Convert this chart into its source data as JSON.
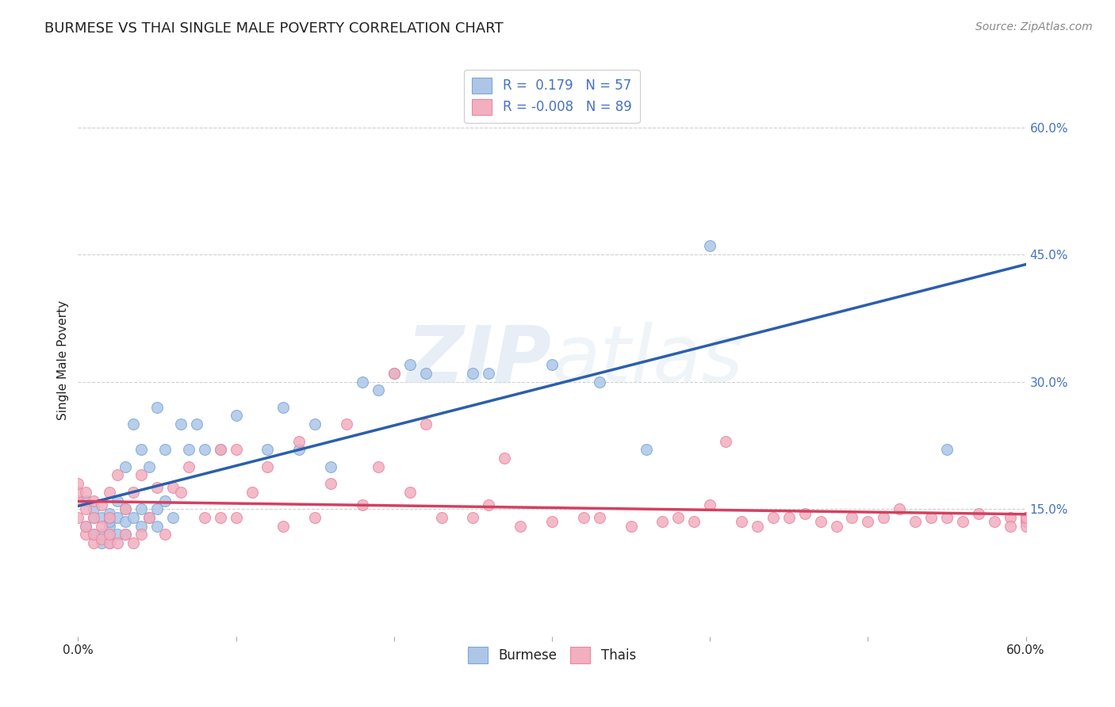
{
  "title": "BURMESE VS THAI SINGLE MALE POVERTY CORRELATION CHART",
  "source": "Source: ZipAtlas.com",
  "ylabel": "Single Male Poverty",
  "x_min": 0.0,
  "x_max": 0.6,
  "y_min": 0.0,
  "y_max": 0.65,
  "x_ticks": [
    0.0,
    0.1,
    0.2,
    0.3,
    0.4,
    0.5,
    0.6
  ],
  "x_tick_labels": [
    "0.0%",
    "",
    "",
    "",
    "",
    "",
    "60.0%"
  ],
  "y_ticks_right": [
    0.15,
    0.3,
    0.45,
    0.6
  ],
  "y_tick_labels_right": [
    "15.0%",
    "30.0%",
    "45.0%",
    "60.0%"
  ],
  "grid_color": "#d0d0d0",
  "background_color": "#ffffff",
  "burmese_color": "#adc6e8",
  "thais_color": "#f2afc0",
  "burmese_edge_color": "#7ba8d4",
  "thais_edge_color": "#e888a0",
  "burmese_line_color": "#2b5fac",
  "thais_line_color": "#d44060",
  "burmese_R": 0.179,
  "burmese_N": 57,
  "thais_R": -0.008,
  "thais_N": 89,
  "title_color": "#222222",
  "ylabel_color": "#222222",
  "tick_label_color_bottom": "#222222",
  "tick_label_color_right": "#4472c4",
  "legend_text_color": "#4472c4",
  "watermark_color": "#d8e4f0",
  "watermark_text": "ZIPatlas",
  "burmese_x": [
    0.005,
    0.005,
    0.01,
    0.01,
    0.01,
    0.015,
    0.015,
    0.015,
    0.02,
    0.02,
    0.02,
    0.02,
    0.02,
    0.02,
    0.025,
    0.025,
    0.025,
    0.03,
    0.03,
    0.03,
    0.03,
    0.035,
    0.035,
    0.04,
    0.04,
    0.04,
    0.045,
    0.045,
    0.05,
    0.05,
    0.05,
    0.055,
    0.055,
    0.06,
    0.065,
    0.07,
    0.075,
    0.08,
    0.09,
    0.1,
    0.12,
    0.13,
    0.14,
    0.15,
    0.16,
    0.18,
    0.19,
    0.2,
    0.21,
    0.22,
    0.25,
    0.26,
    0.3,
    0.33,
    0.36,
    0.4,
    0.55
  ],
  "burmese_y": [
    0.13,
    0.16,
    0.12,
    0.14,
    0.15,
    0.11,
    0.12,
    0.14,
    0.11,
    0.12,
    0.13,
    0.135,
    0.14,
    0.145,
    0.12,
    0.14,
    0.16,
    0.12,
    0.135,
    0.15,
    0.2,
    0.14,
    0.25,
    0.13,
    0.15,
    0.22,
    0.14,
    0.2,
    0.13,
    0.15,
    0.27,
    0.16,
    0.22,
    0.14,
    0.25,
    0.22,
    0.25,
    0.22,
    0.22,
    0.26,
    0.22,
    0.27,
    0.22,
    0.25,
    0.2,
    0.3,
    0.29,
    0.31,
    0.32,
    0.31,
    0.31,
    0.31,
    0.32,
    0.3,
    0.22,
    0.46,
    0.22
  ],
  "thais_x": [
    0.0,
    0.0,
    0.0,
    0.0,
    0.005,
    0.005,
    0.005,
    0.005,
    0.01,
    0.01,
    0.01,
    0.01,
    0.015,
    0.015,
    0.015,
    0.02,
    0.02,
    0.02,
    0.02,
    0.025,
    0.025,
    0.03,
    0.03,
    0.035,
    0.035,
    0.04,
    0.04,
    0.045,
    0.05,
    0.055,
    0.06,
    0.065,
    0.07,
    0.08,
    0.09,
    0.09,
    0.1,
    0.1,
    0.11,
    0.12,
    0.13,
    0.14,
    0.15,
    0.16,
    0.17,
    0.18,
    0.19,
    0.2,
    0.21,
    0.22,
    0.23,
    0.25,
    0.26,
    0.27,
    0.28,
    0.3,
    0.32,
    0.33,
    0.35,
    0.37,
    0.38,
    0.39,
    0.4,
    0.41,
    0.42,
    0.43,
    0.44,
    0.45,
    0.46,
    0.47,
    0.48,
    0.49,
    0.5,
    0.51,
    0.52,
    0.53,
    0.54,
    0.55,
    0.56,
    0.57,
    0.58,
    0.59,
    0.59,
    0.6,
    0.6,
    0.6,
    0.6,
    0.6,
    0.6
  ],
  "thais_y": [
    0.14,
    0.16,
    0.17,
    0.18,
    0.12,
    0.13,
    0.15,
    0.17,
    0.11,
    0.12,
    0.14,
    0.16,
    0.115,
    0.13,
    0.155,
    0.11,
    0.12,
    0.14,
    0.17,
    0.11,
    0.19,
    0.12,
    0.15,
    0.11,
    0.17,
    0.12,
    0.19,
    0.14,
    0.175,
    0.12,
    0.175,
    0.17,
    0.2,
    0.14,
    0.14,
    0.22,
    0.14,
    0.22,
    0.17,
    0.2,
    0.13,
    0.23,
    0.14,
    0.18,
    0.25,
    0.155,
    0.2,
    0.31,
    0.17,
    0.25,
    0.14,
    0.14,
    0.155,
    0.21,
    0.13,
    0.135,
    0.14,
    0.14,
    0.13,
    0.135,
    0.14,
    0.135,
    0.155,
    0.23,
    0.135,
    0.13,
    0.14,
    0.14,
    0.145,
    0.135,
    0.13,
    0.14,
    0.135,
    0.14,
    0.15,
    0.135,
    0.14,
    0.14,
    0.135,
    0.145,
    0.135,
    0.14,
    0.13,
    0.135,
    0.14,
    0.135,
    0.14,
    0.13,
    0.14
  ]
}
